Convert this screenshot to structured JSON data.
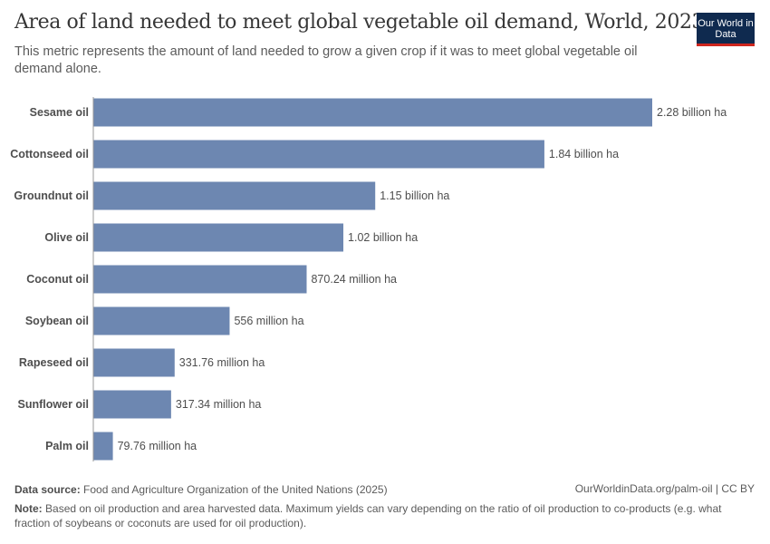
{
  "header": {
    "title": "Area of land needed to meet global vegetable oil demand, World, 2023",
    "subtitle": "This metric represents the amount of land needed to grow a given crop if it was to meet global vegetable oil demand alone.",
    "logo": "Our World in Data"
  },
  "chart_data": {
    "type": "bar",
    "orientation": "horizontal",
    "unit": "hectares",
    "categories": [
      "Sesame oil",
      "Cottonseed oil",
      "Groundnut oil",
      "Olive oil",
      "Coconut oil",
      "Soybean oil",
      "Rapeseed oil",
      "Sunflower oil",
      "Palm oil"
    ],
    "values": [
      2280000000,
      1840000000,
      1150000000,
      1020000000,
      870240000,
      556000000,
      331760000,
      317340000,
      79760000
    ],
    "value_labels": [
      "2.28 billion ha",
      "1.84 billion ha",
      "1.15 billion ha",
      "1.02 billion ha",
      "870.24 million ha",
      "556 million ha",
      "331.76 million ha",
      "317.34 million ha",
      "79.76 million ha"
    ],
    "bar_color": "#6d87b1",
    "grid": false
  },
  "footer": {
    "source_label": "Data source:",
    "source": "Food and Agriculture Organization of the United Nations (2025)",
    "url": "OurWorldinData.org/palm-oil | CC BY",
    "note_label": "Note:",
    "note": "Based on oil production and area harvested data. Maximum yields can vary depending on the ratio of oil production to co-products (e.g. what fraction of soybeans or coconuts are used for oil production)."
  }
}
